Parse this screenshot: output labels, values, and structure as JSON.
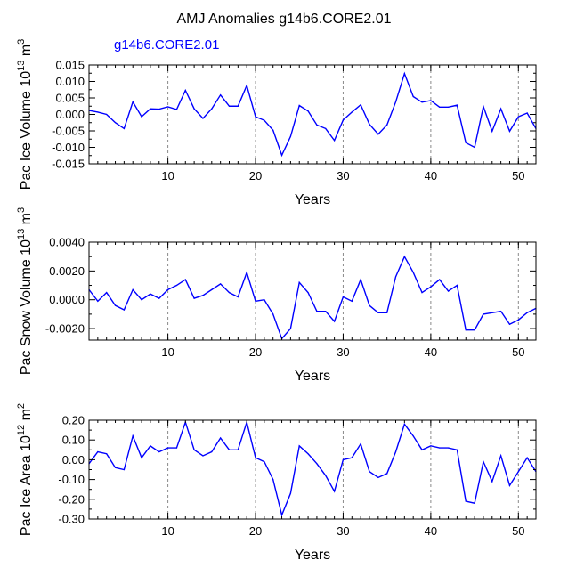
{
  "title": "AMJ Anomalies g14b6.CORE2.01",
  "line_color": "#0000ff",
  "chart_data": [
    {
      "type": "line",
      "legend_label": "g14b6.CORE2.01",
      "ylabel_main": "Pac Ice Volume 10",
      "ylabel_exp": "13",
      "ylabel_unit": " m",
      "ylabel_unit_exp": "3",
      "xlabel": "Years",
      "xlim": [
        1,
        52
      ],
      "ylim": [
        -0.015,
        0.015
      ],
      "x_ticks": [
        10,
        20,
        30,
        40,
        50
      ],
      "x_tick_labels": [
        "10",
        "20",
        "30",
        "40",
        "50"
      ],
      "y_ticks": [
        -0.015,
        -0.01,
        -0.005,
        0,
        0.005,
        0.01,
        0.015
      ],
      "y_tick_labels": [
        "-0.015",
        "-0.010",
        "-0.005",
        "0.000",
        "0.005",
        "0.010",
        "0.015"
      ],
      "gridlines_x": [
        10,
        20,
        30,
        40,
        50
      ],
      "x": [
        1,
        2,
        3,
        4,
        5,
        6,
        7,
        8,
        9,
        10,
        11,
        12,
        13,
        14,
        15,
        16,
        17,
        18,
        19,
        20,
        21,
        22,
        23,
        24,
        25,
        26,
        27,
        28,
        29,
        30,
        31,
        32,
        33,
        34,
        35,
        36,
        37,
        38,
        39,
        40,
        41,
        42,
        43,
        44,
        45,
        46,
        47,
        48,
        49,
        50,
        51,
        52
      ],
      "values": [
        0.0012,
        0.0007,
        0.0,
        -0.0025,
        -0.0043,
        0.0038,
        -0.0007,
        0.0017,
        0.0016,
        0.0023,
        0.0015,
        0.0073,
        0.0017,
        -0.0012,
        0.0017,
        0.0059,
        0.0025,
        0.0025,
        0.0088,
        -0.0007,
        -0.0018,
        -0.0048,
        -0.0124,
        -0.0067,
        0.0027,
        0.001,
        -0.0032,
        -0.0043,
        -0.0079,
        -0.0017,
        0.0007,
        0.0029,
        -0.003,
        -0.006,
        -0.0032,
        0.0038,
        0.0124,
        0.0054,
        0.0037,
        0.0042,
        0.0022,
        0.0022,
        0.0028,
        -0.0086,
        -0.01,
        0.0024,
        -0.0051,
        0.0017,
        -0.0051,
        -0.0007,
        0.0004,
        -0.0043
      ]
    },
    {
      "type": "line",
      "ylabel_main": "Pac Snow Volume 10",
      "ylabel_exp": "13",
      "ylabel_unit": " m",
      "ylabel_unit_exp": "3",
      "xlabel": "Years",
      "xlim": [
        1,
        52
      ],
      "ylim": [
        -0.0028,
        0.004
      ],
      "x_ticks": [
        10,
        20,
        30,
        40,
        50
      ],
      "x_tick_labels": [
        "10",
        "20",
        "30",
        "40",
        "50"
      ],
      "y_ticks": [
        -0.002,
        0,
        0.002,
        0.004
      ],
      "y_tick_labels": [
        "-0.0020",
        "0.0000",
        "0.0020",
        "0.0040"
      ],
      "gridlines_x": [
        10,
        20,
        30,
        40,
        50
      ],
      "x": [
        1,
        2,
        3,
        4,
        5,
        6,
        7,
        8,
        9,
        10,
        11,
        12,
        13,
        14,
        15,
        16,
        17,
        18,
        19,
        20,
        21,
        22,
        23,
        24,
        25,
        26,
        27,
        28,
        29,
        30,
        31,
        32,
        33,
        34,
        35,
        36,
        37,
        38,
        39,
        40,
        41,
        42,
        43,
        44,
        45,
        46,
        47,
        48,
        49,
        50,
        51,
        52
      ],
      "values": [
        0.0007,
        -0.0001,
        0.0005,
        -0.0004,
        -0.0007,
        0.0007,
        0.0,
        0.0004,
        0.0001,
        0.0007,
        0.001,
        0.0014,
        0.0001,
        0.0003,
        0.0007,
        0.0011,
        0.0005,
        0.0002,
        0.0019,
        -0.0001,
        0.0,
        -0.001,
        -0.0027,
        -0.002,
        0.0012,
        0.0005,
        -0.0008,
        -0.0008,
        -0.0015,
        0.0002,
        -0.0001,
        0.0014,
        -0.0004,
        -0.0009,
        -0.0009,
        0.0016,
        0.003,
        0.0019,
        0.0005,
        0.0009,
        0.0014,
        0.0006,
        0.001,
        -0.0021,
        -0.0021,
        -0.001,
        -0.0009,
        -0.0008,
        -0.0017,
        -0.0014,
        -0.0009,
        -0.0006
      ]
    },
    {
      "type": "line",
      "ylabel_main": "Pac Ice Area 10",
      "ylabel_exp": "12",
      "ylabel_unit": " m",
      "ylabel_unit_exp": "2",
      "xlabel": "Years",
      "xlim": [
        1,
        52
      ],
      "ylim": [
        -0.3,
        0.2
      ],
      "x_ticks": [
        10,
        20,
        30,
        40,
        50
      ],
      "x_tick_labels": [
        "10",
        "20",
        "30",
        "40",
        "50"
      ],
      "y_ticks": [
        -0.3,
        -0.2,
        -0.1,
        0,
        0.1,
        0.2
      ],
      "y_tick_labels": [
        "-0.30",
        "-0.20",
        "-0.10",
        "0.00",
        "0.10",
        "0.20"
      ],
      "gridlines_x": [
        10,
        20,
        30,
        40,
        50
      ],
      "x": [
        1,
        2,
        3,
        4,
        5,
        6,
        7,
        8,
        9,
        10,
        11,
        12,
        13,
        14,
        15,
        16,
        17,
        18,
        19,
        20,
        21,
        22,
        23,
        24,
        25,
        26,
        27,
        28,
        29,
        30,
        31,
        32,
        33,
        34,
        35,
        36,
        37,
        38,
        39,
        40,
        41,
        42,
        43,
        44,
        45,
        46,
        47,
        48,
        49,
        50,
        51,
        52
      ],
      "values": [
        -0.02,
        0.04,
        0.03,
        -0.04,
        -0.05,
        0.12,
        0.01,
        0.07,
        0.04,
        0.06,
        0.06,
        0.19,
        0.05,
        0.02,
        0.04,
        0.11,
        0.05,
        0.05,
        0.19,
        0.01,
        -0.01,
        -0.1,
        -0.28,
        -0.17,
        0.07,
        0.03,
        -0.02,
        -0.08,
        -0.16,
        0.0,
        0.01,
        0.08,
        -0.06,
        -0.09,
        -0.07,
        0.04,
        0.18,
        0.12,
        0.05,
        0.07,
        0.06,
        0.06,
        0.05,
        -0.21,
        -0.22,
        -0.01,
        -0.11,
        0.02,
        -0.13,
        -0.06,
        0.01,
        -0.06
      ]
    }
  ]
}
